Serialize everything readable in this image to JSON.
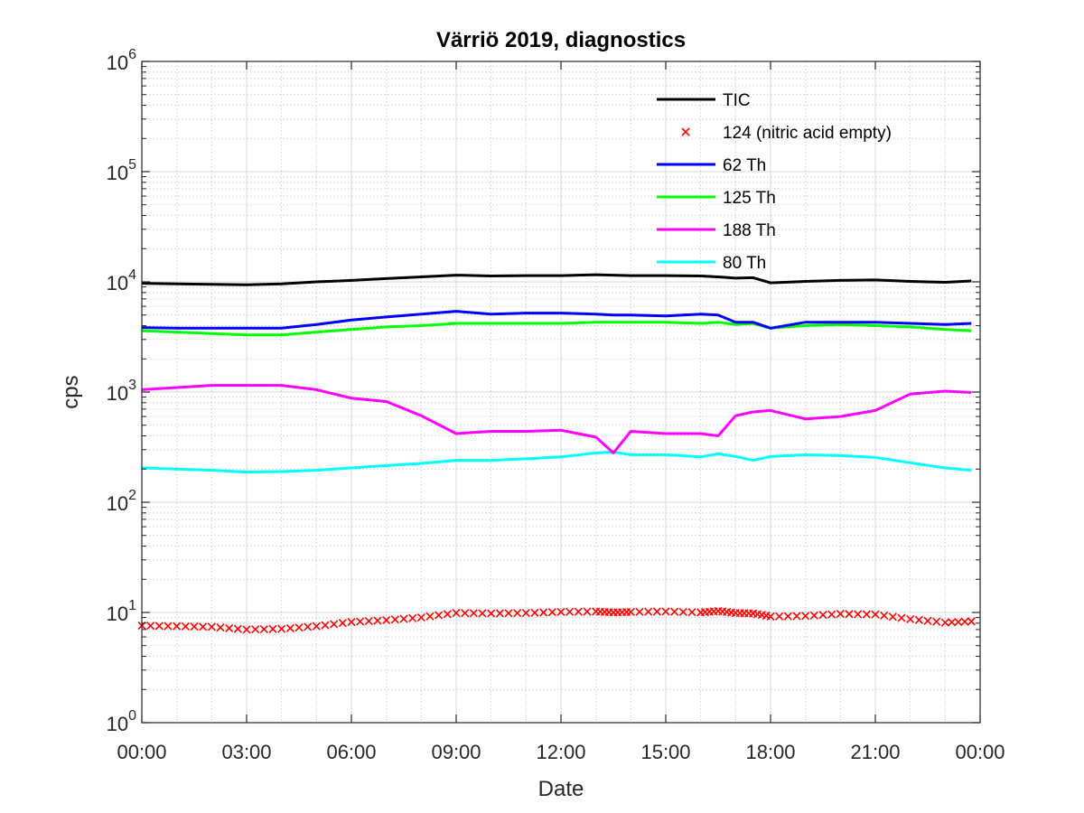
{
  "chart_data": {
    "type": "line",
    "title": "Värriö 2019, diagnostics",
    "xlabel": "Date",
    "ylabel": "cps",
    "yscale": "log",
    "ylim": [
      1,
      1000000
    ],
    "xlim": [
      "00:00",
      "24:00"
    ],
    "x_tick_labels": [
      "00:00",
      "03:00",
      "06:00",
      "09:00",
      "12:00",
      "15:00",
      "18:00",
      "21:00",
      "00:00"
    ],
    "y_tick_labels": [
      {
        "base": "10",
        "exp": "0"
      },
      {
        "base": "10",
        "exp": "1"
      },
      {
        "base": "10",
        "exp": "2"
      },
      {
        "base": "10",
        "exp": "3"
      },
      {
        "base": "10",
        "exp": "4"
      },
      {
        "base": "10",
        "exp": "5"
      },
      {
        "base": "10",
        "exp": "6"
      }
    ],
    "grid": "on (major and minor)",
    "legend_position": "top-right",
    "x_hours": [
      0,
      1,
      2,
      3,
      4,
      5,
      6,
      7,
      8,
      9,
      10,
      11,
      12,
      13,
      13.5,
      14,
      15,
      16,
      16.5,
      17,
      17.5,
      18,
      19,
      20,
      21,
      22,
      23,
      23.75
    ],
    "series": [
      {
        "name": "TIC",
        "color": "#000000",
        "style": "line",
        "values": [
          9700,
          9600,
          9500,
          9400,
          9600,
          10000,
          10300,
          10700,
          11100,
          11500,
          11300,
          11400,
          11400,
          11600,
          11500,
          11400,
          11400,
          11300,
          11100,
          10800,
          10900,
          9800,
          10100,
          10300,
          10400,
          10100,
          9900,
          10200
        ]
      },
      {
        "name": "124 (nitric acid empty)",
        "color": "#ff0000",
        "style": "marker-x",
        "values": [
          7.6,
          7.5,
          7.4,
          7.0,
          7.1,
          7.5,
          8.2,
          8.5,
          9.0,
          9.9,
          9.8,
          9.9,
          10.1,
          10.2,
          10.0,
          10.1,
          10.2,
          10.0,
          10.3,
          9.9,
          9.8,
          9.2,
          9.3,
          9.7,
          9.6,
          8.7,
          8.1,
          8.3
        ]
      },
      {
        "name": "62 Th",
        "color": "#0000ff",
        "style": "line",
        "values": [
          3850,
          3800,
          3800,
          3800,
          3800,
          4100,
          4500,
          4800,
          5100,
          5400,
          5100,
          5200,
          5200,
          5100,
          5000,
          5000,
          4900,
          5100,
          5000,
          4300,
          4300,
          3800,
          4300,
          4300,
          4300,
          4200,
          4100,
          4200
        ]
      },
      {
        "name": "125 Th",
        "color": "#00ff00",
        "style": "line",
        "values": [
          3600,
          3500,
          3400,
          3300,
          3300,
          3500,
          3700,
          3900,
          4000,
          4200,
          4200,
          4200,
          4200,
          4300,
          4300,
          4300,
          4300,
          4200,
          4300,
          4100,
          4200,
          3800,
          4000,
          4100,
          4000,
          3900,
          3700,
          3600
        ]
      },
      {
        "name": "188 Th",
        "color": "#ff00ff",
        "style": "line",
        "values": [
          1050,
          1100,
          1150,
          1150,
          1150,
          1050,
          880,
          820,
          610,
          420,
          440,
          440,
          450,
          390,
          280,
          440,
          420,
          420,
          400,
          610,
          660,
          680,
          570,
          600,
          680,
          960,
          1020,
          990
        ]
      },
      {
        "name": "80 Th",
        "color": "#00ffff",
        "style": "line",
        "values": [
          205,
          200,
          195,
          188,
          190,
          195,
          205,
          215,
          225,
          240,
          240,
          248,
          258,
          280,
          285,
          270,
          270,
          258,
          275,
          260,
          240,
          260,
          270,
          265,
          255,
          228,
          205,
          195
        ]
      }
    ]
  }
}
